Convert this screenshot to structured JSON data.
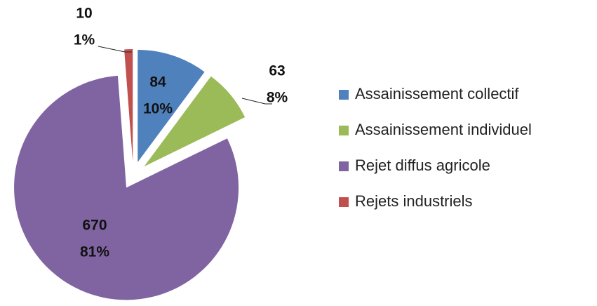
{
  "chart_data": {
    "type": "pie",
    "categories": [
      "Assainissement collectif",
      "Assainissement individuel",
      "Rejet diffus agricole",
      "Rejets industriels"
    ],
    "values": [
      84,
      63,
      670,
      10
    ],
    "percentages": [
      10,
      8,
      81,
      1
    ],
    "percentage_labels": [
      "10%",
      "8%",
      "81%",
      "1%"
    ],
    "colors": [
      "#4f81bd",
      "#9bbb59",
      "#8064a2",
      "#c0504d"
    ],
    "exploded": true,
    "legend": "right"
  }
}
